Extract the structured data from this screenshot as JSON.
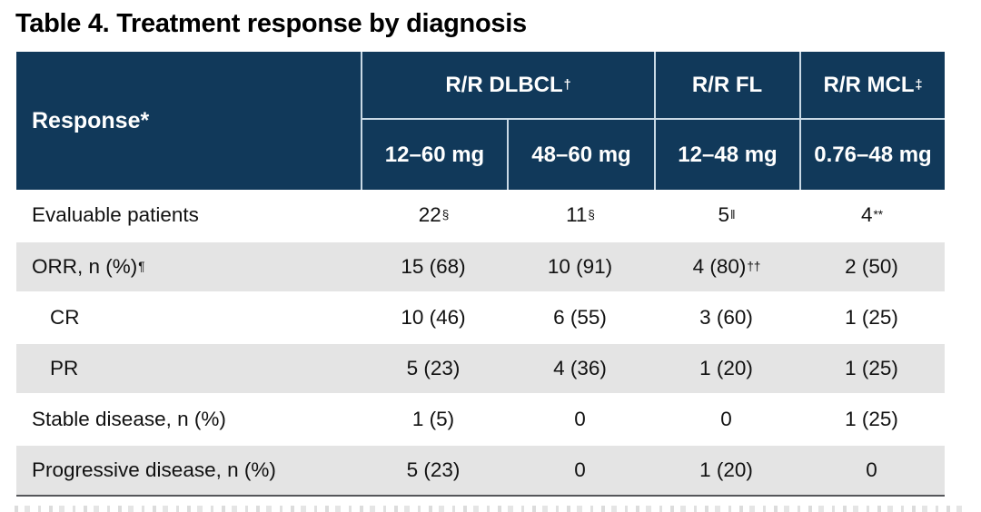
{
  "title": "Table 4. Treatment response by diagnosis",
  "colors": {
    "header_bg": "#11395a",
    "header_text": "#ffffff",
    "header_divider": "#c9d9e5",
    "alt_row_bg": "#e4e4e4",
    "body_text": "#111111",
    "bottom_border": "#55565a"
  },
  "table": {
    "response_label": "Response*",
    "groups": [
      {
        "label": "R/R DLBCL",
        "sup": "†"
      },
      {
        "label": "R/R FL",
        "sup": ""
      },
      {
        "label": "R/R MCL",
        "sup": "‡"
      }
    ],
    "dose_columns": [
      "12–60 mg",
      "48–60 mg",
      "12–48 mg",
      "0.76–48 mg"
    ],
    "rows": [
      {
        "label": "Evaluable patients",
        "label_sup": "",
        "cells": [
          {
            "text": "22",
            "sup": "§"
          },
          {
            "text": "11",
            "sup": "§"
          },
          {
            "text": "5",
            "sup": "‖"
          },
          {
            "text": "4",
            "sup": "**"
          }
        ]
      },
      {
        "label": "ORR, n (%)",
        "label_sup": "¶",
        "cells": [
          {
            "text": "15 (68)",
            "sup": ""
          },
          {
            "text": "10 (91)",
            "sup": ""
          },
          {
            "text": "4 (80)",
            "sup": "††"
          },
          {
            "text": "2 (50)",
            "sup": ""
          }
        ]
      },
      {
        "label": "CR",
        "label_sup": "",
        "cells": [
          {
            "text": "10 (46)",
            "sup": ""
          },
          {
            "text": "6 (55)",
            "sup": ""
          },
          {
            "text": "3 (60)",
            "sup": ""
          },
          {
            "text": "1 (25)",
            "sup": ""
          }
        ]
      },
      {
        "label": "PR",
        "label_sup": "",
        "cells": [
          {
            "text": "5 (23)",
            "sup": ""
          },
          {
            "text": "4 (36)",
            "sup": ""
          },
          {
            "text": "1 (20)",
            "sup": ""
          },
          {
            "text": "1 (25)",
            "sup": ""
          }
        ]
      },
      {
        "label": "Stable disease, n (%)",
        "label_sup": "",
        "cells": [
          {
            "text": "1 (5)",
            "sup": ""
          },
          {
            "text": "0",
            "sup": ""
          },
          {
            "text": "0",
            "sup": ""
          },
          {
            "text": "1 (25)",
            "sup": ""
          }
        ]
      },
      {
        "label": "Progressive disease, n (%)",
        "label_sup": "",
        "cells": [
          {
            "text": "5 (23)",
            "sup": ""
          },
          {
            "text": "0",
            "sup": ""
          },
          {
            "text": "1 (20)",
            "sup": ""
          },
          {
            "text": "0",
            "sup": ""
          }
        ]
      }
    ]
  },
  "chart_data": {
    "type": "table",
    "title": "Table 4. Treatment response by diagnosis",
    "columns": [
      "Response*",
      "R/R DLBCL† 12–60 mg",
      "R/R DLBCL† 48–60 mg",
      "R/R FL 12–48 mg",
      "R/R MCL‡ 0.76–48 mg"
    ],
    "rows": [
      [
        "Evaluable patients",
        "22§",
        "11§",
        "5‖",
        "4**"
      ],
      [
        "ORR, n (%)¶",
        "15 (68)",
        "10 (91)",
        "4 (80)††",
        "2 (50)"
      ],
      [
        "CR",
        "10 (46)",
        "6 (55)",
        "3 (60)",
        "1 (25)"
      ],
      [
        "PR",
        "5 (23)",
        "4 (36)",
        "1 (20)",
        "1 (25)"
      ],
      [
        "Stable disease, n (%)",
        "1 (5)",
        "0",
        "0",
        "1 (25)"
      ],
      [
        "Progressive disease, n (%)",
        "5 (23)",
        "0",
        "1 (20)",
        "0"
      ]
    ]
  }
}
